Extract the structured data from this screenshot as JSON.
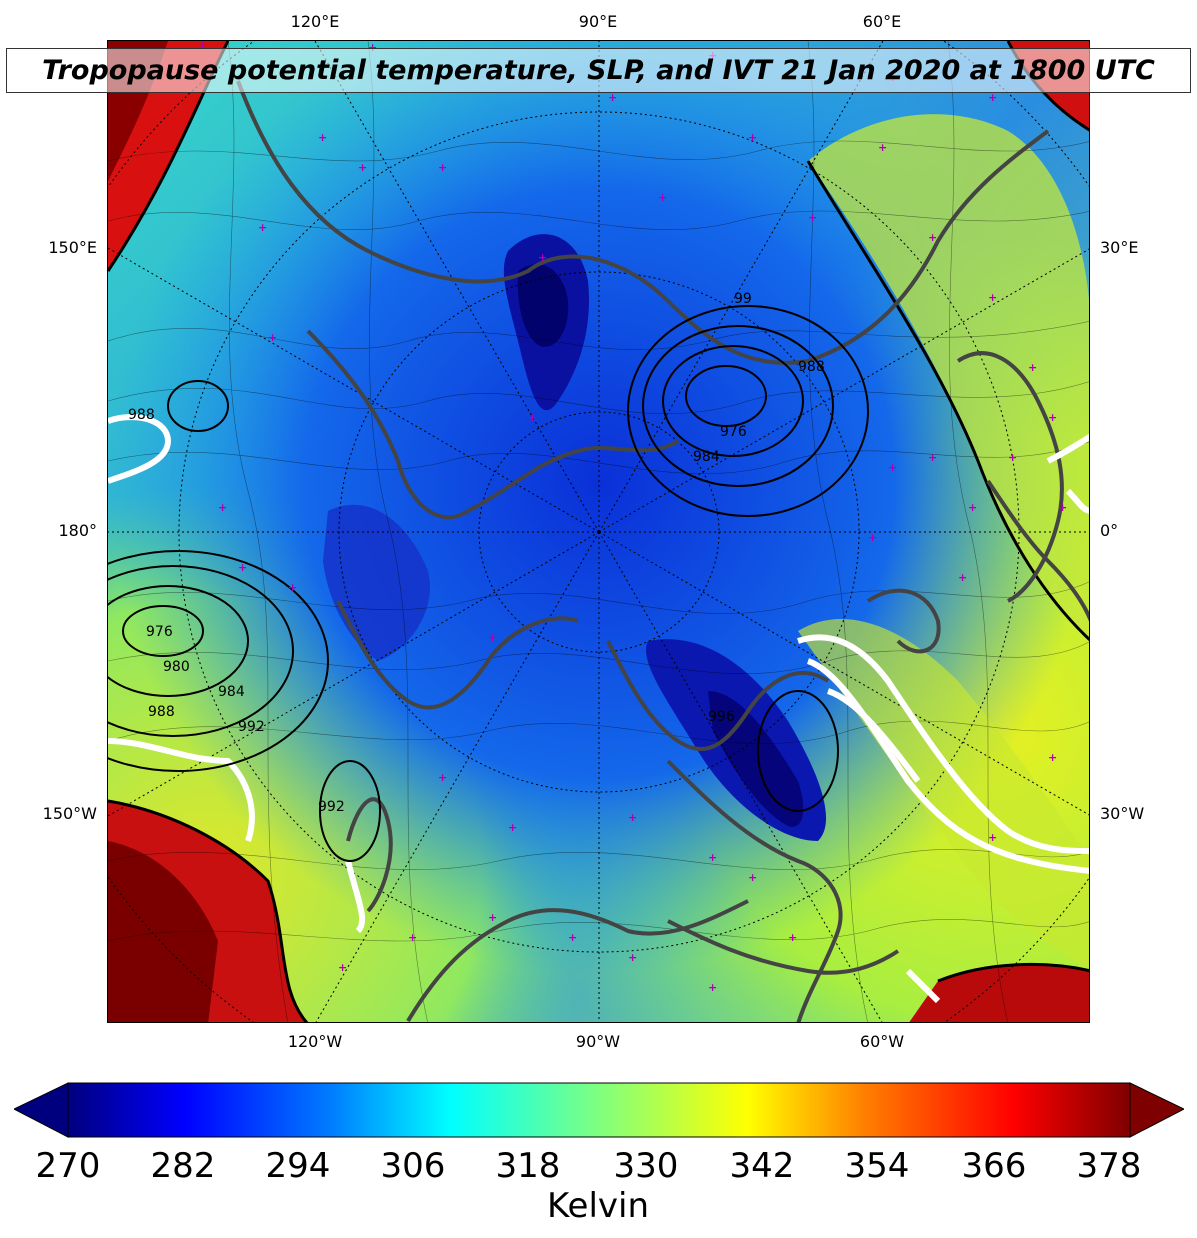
{
  "title": "Tropopause potential temperature, SLP, and IVT 21 Jan 2020 at 1800 UTC",
  "longitude_labels": {
    "top": [
      "120°E",
      "90°E",
      "60°E"
    ],
    "bottom": [
      "120°W",
      "90°W",
      "60°W"
    ],
    "left": [
      "150°E",
      "180°",
      "150°W"
    ],
    "right": [
      "30°E",
      "0°",
      "30°W"
    ]
  },
  "slp_contour_labels": [
    "99",
    "988",
    "976",
    "984",
    "988",
    "976",
    "980",
    "984",
    "988",
    "992",
    "992",
    "996"
  ],
  "colorbar": {
    "ticks": [
      "270",
      "282",
      "294",
      "306",
      "318",
      "330",
      "342",
      "354",
      "366",
      "378"
    ],
    "label": "Kelvin",
    "extend": "both",
    "colormap": "jet",
    "colors": [
      "#00007f",
      "#0000ff",
      "#007fff",
      "#00ffff",
      "#7fff7f",
      "#ffff00",
      "#ff7f00",
      "#ff0000",
      "#7f0000"
    ]
  },
  "colors": {
    "contour": "#000000",
    "ivt": "#ffffff",
    "coastline": "#444444",
    "station_marker": "#b000b0"
  }
}
